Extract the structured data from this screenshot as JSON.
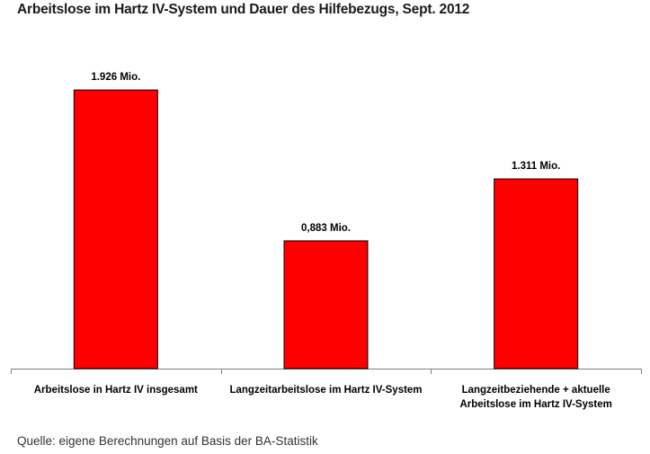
{
  "title": "Arbeitslose im Hartz IV-System und Dauer des Hilfebezugs, Sept. 2012",
  "source": "Quelle: eigene Berechnungen auf Basis der BA-Statistik",
  "colors": {
    "bar": "#ff0000",
    "bar_border": "#000000",
    "axis": "#808080"
  },
  "chart_data": {
    "type": "bar",
    "title": "Arbeitslose im Hartz IV-System und Dauer des Hilfebezugs, Sept. 2012",
    "categories": [
      [
        "Arbeitslose in Hartz IV insgesamt"
      ],
      [
        "Langzeitarbeitslose im Hartz IV-System"
      ],
      [
        "Langzeitbeziehende + aktuelle",
        "Arbeitslose im Hartz IV-System"
      ]
    ],
    "values": [
      1.926,
      0.883,
      1.311
    ],
    "value_labels": [
      "1.926 Mio.",
      "0,883 Mio.",
      "1.311 Mio."
    ],
    "unit": "Mio.",
    "ylim": [
      0,
      2.2
    ],
    "grid": false,
    "legend": "none"
  }
}
